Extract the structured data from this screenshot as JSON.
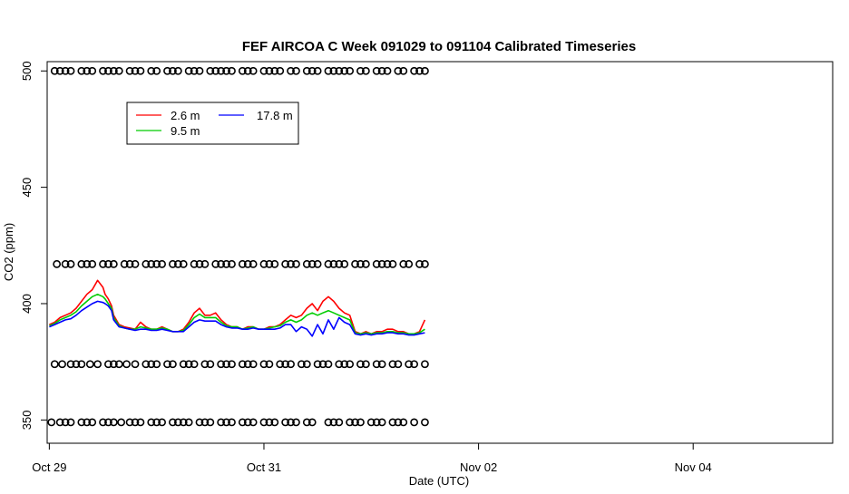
{
  "chart_data": {
    "type": "line",
    "title": "FEF AIRCOA C  Week 091029 to 091104  Calibrated Timeseries",
    "xlabel": "Date (UTC)",
    "ylabel": "CO2 (ppm)",
    "xlim": [
      -0.02,
      7.3
    ],
    "ylim": [
      340,
      504
    ],
    "x_ticks": [
      {
        "value": 0,
        "label": "Oct 29"
      },
      {
        "value": 2,
        "label": "Oct 31"
      },
      {
        "value": 4,
        "label": "Nov 02"
      },
      {
        "value": 6,
        "label": "Nov 04"
      }
    ],
    "y_ticks": [
      {
        "value": 350,
        "label": "350"
      },
      {
        "value": 400,
        "label": "400"
      },
      {
        "value": 450,
        "label": "450"
      },
      {
        "value": 500,
        "label": "500"
      }
    ],
    "grid": false,
    "legend": {
      "placement": "top-left",
      "entries": [
        {
          "label": "2.6 m",
          "color": "#ff0000"
        },
        {
          "label": "9.5 m",
          "color": "#00cc00"
        },
        {
          "label": "17.8 m",
          "color": "#0000ff"
        }
      ]
    },
    "series": [
      {
        "name": "2.6 m",
        "color": "#ff0000",
        "x": [
          0.0,
          0.05,
          0.1,
          0.15,
          0.2,
          0.25,
          0.3,
          0.35,
          0.4,
          0.45,
          0.5,
          0.52,
          0.55,
          0.58,
          0.6,
          0.65,
          0.7,
          0.75,
          0.8,
          0.85,
          0.9,
          0.95,
          1.0,
          1.05,
          1.1,
          1.15,
          1.2,
          1.25,
          1.3,
          1.35,
          1.4,
          1.45,
          1.5,
          1.55,
          1.6,
          1.65,
          1.7,
          1.75,
          1.8,
          1.85,
          1.9,
          1.95,
          2.0,
          2.05,
          2.1,
          2.15,
          2.2,
          2.25,
          2.3,
          2.35,
          2.4,
          2.45,
          2.5,
          2.55,
          2.6,
          2.65,
          2.7,
          2.75,
          2.8,
          2.85,
          2.9,
          2.95,
          3.0,
          3.05,
          3.1,
          3.15,
          3.2,
          3.25,
          3.3,
          3.35,
          3.4,
          3.45,
          3.5
        ],
        "y": [
          391,
          392,
          394,
          395,
          396,
          398,
          401,
          404,
          406,
          410,
          407,
          404,
          402,
          399,
          395,
          391,
          390,
          389.5,
          389,
          392,
          390,
          389,
          389,
          390,
          389,
          388,
          388,
          389,
          392,
          396,
          398,
          395,
          395,
          396,
          393,
          391,
          390,
          390,
          389,
          390,
          390,
          389,
          389,
          390,
          390,
          391,
          393,
          395,
          394,
          395,
          398,
          400,
          397,
          401,
          403,
          401,
          398,
          396,
          395,
          388,
          387,
          388,
          387,
          388,
          388,
          389,
          389,
          388,
          388,
          387,
          387,
          388,
          393
        ]
      },
      {
        "name": "9.5 m",
        "color": "#00cc00",
        "x": [
          0.0,
          0.05,
          0.1,
          0.15,
          0.2,
          0.25,
          0.3,
          0.35,
          0.4,
          0.45,
          0.5,
          0.52,
          0.55,
          0.58,
          0.6,
          0.65,
          0.7,
          0.75,
          0.8,
          0.85,
          0.9,
          0.95,
          1.0,
          1.05,
          1.1,
          1.15,
          1.2,
          1.25,
          1.3,
          1.35,
          1.4,
          1.45,
          1.5,
          1.55,
          1.6,
          1.65,
          1.7,
          1.75,
          1.8,
          1.85,
          1.9,
          1.95,
          2.0,
          2.05,
          2.1,
          2.15,
          2.2,
          2.25,
          2.3,
          2.35,
          2.4,
          2.45,
          2.5,
          2.55,
          2.6,
          2.65,
          2.7,
          2.75,
          2.8,
          2.85,
          2.9,
          2.95,
          3.0,
          3.05,
          3.1,
          3.15,
          3.2,
          3.25,
          3.3,
          3.35,
          3.4,
          3.45,
          3.5
        ],
        "y": [
          390.5,
          391.5,
          393,
          394,
          395,
          396.5,
          399,
          401,
          403,
          404,
          403,
          402,
          400,
          398,
          394,
          390.5,
          389.5,
          389,
          389,
          390,
          389.5,
          389,
          389,
          389.5,
          389,
          388,
          388,
          388.5,
          391,
          394,
          395.5,
          394,
          394,
          394,
          392,
          390.5,
          390,
          390,
          389,
          389.5,
          390,
          389,
          389,
          389.5,
          390,
          390.5,
          392,
          393,
          392,
          393,
          395,
          396,
          395,
          396,
          397,
          396,
          395,
          394,
          393,
          387.5,
          387,
          387.5,
          387,
          387.5,
          387.5,
          388,
          388,
          387.5,
          387.5,
          387,
          387,
          387.5,
          389
        ]
      },
      {
        "name": "17.8 m",
        "color": "#0000ff",
        "x": [
          0.0,
          0.05,
          0.1,
          0.15,
          0.2,
          0.25,
          0.3,
          0.35,
          0.4,
          0.45,
          0.5,
          0.52,
          0.55,
          0.58,
          0.6,
          0.65,
          0.7,
          0.75,
          0.8,
          0.85,
          0.9,
          0.95,
          1.0,
          1.05,
          1.1,
          1.15,
          1.2,
          1.25,
          1.3,
          1.35,
          1.4,
          1.45,
          1.5,
          1.55,
          1.6,
          1.65,
          1.7,
          1.75,
          1.8,
          1.85,
          1.9,
          1.95,
          2.0,
          2.05,
          2.1,
          2.15,
          2.2,
          2.25,
          2.3,
          2.35,
          2.4,
          2.45,
          2.5,
          2.55,
          2.6,
          2.65,
          2.7,
          2.75,
          2.8,
          2.85,
          2.9,
          2.95,
          3.0,
          3.05,
          3.1,
          3.15,
          3.2,
          3.25,
          3.3,
          3.35,
          3.4,
          3.45,
          3.5
        ],
        "y": [
          390,
          391,
          392,
          393,
          393.5,
          395,
          397,
          398.5,
          400,
          401,
          400.5,
          400,
          399,
          397,
          393,
          390,
          389.5,
          389,
          388.5,
          389,
          389,
          388.5,
          388.5,
          389,
          388.5,
          388,
          388,
          388,
          390,
          392,
          393,
          392.5,
          392.5,
          392.5,
          391,
          390,
          389.5,
          389.5,
          389,
          389,
          389.5,
          389,
          389,
          389,
          389,
          389.5,
          391,
          391,
          388,
          390,
          389,
          386,
          391,
          387,
          393,
          389,
          394,
          392,
          391,
          387,
          386.5,
          387,
          386.5,
          387,
          387,
          387.5,
          387.5,
          387,
          387,
          386.5,
          386.5,
          387,
          387.5
        ]
      }
    ],
    "flag_rows": [
      {
        "name": "flags-500",
        "y": 500,
        "x": [
          0.05,
          0.1,
          0.15,
          0.2,
          0.3,
          0.35,
          0.4,
          0.5,
          0.55,
          0.6,
          0.65,
          0.75,
          0.8,
          0.85,
          0.95,
          1.0,
          1.1,
          1.15,
          1.2,
          1.3,
          1.35,
          1.4,
          1.5,
          1.55,
          1.6,
          1.65,
          1.7,
          1.8,
          1.85,
          1.9,
          2.0,
          2.05,
          2.1,
          2.15,
          2.25,
          2.3,
          2.4,
          2.45,
          2.5,
          2.6,
          2.65,
          2.7,
          2.75,
          2.8,
          2.9,
          2.95,
          3.05,
          3.1,
          3.15,
          3.25,
          3.3,
          3.4,
          3.45,
          3.5
        ]
      },
      {
        "name": "flags-417",
        "y": 417,
        "x": [
          0.07,
          0.15,
          0.2,
          0.3,
          0.35,
          0.4,
          0.5,
          0.55,
          0.6,
          0.7,
          0.75,
          0.8,
          0.9,
          0.95,
          1.0,
          1.05,
          1.15,
          1.2,
          1.25,
          1.35,
          1.4,
          1.45,
          1.55,
          1.6,
          1.65,
          1.7,
          1.8,
          1.85,
          1.9,
          2.0,
          2.05,
          2.1,
          2.2,
          2.25,
          2.3,
          2.4,
          2.45,
          2.5,
          2.6,
          2.65,
          2.7,
          2.75,
          2.85,
          2.9,
          2.95,
          3.05,
          3.1,
          3.15,
          3.2,
          3.3,
          3.35,
          3.45,
          3.5
        ]
      },
      {
        "name": "flags-374",
        "y": 374,
        "x": [
          0.05,
          0.12,
          0.2,
          0.25,
          0.3,
          0.38,
          0.45,
          0.55,
          0.6,
          0.65,
          0.72,
          0.8,
          0.9,
          0.95,
          1.0,
          1.1,
          1.15,
          1.25,
          1.3,
          1.35,
          1.45,
          1.5,
          1.6,
          1.65,
          1.7,
          1.8,
          1.85,
          1.9,
          2.0,
          2.05,
          2.15,
          2.2,
          2.25,
          2.35,
          2.4,
          2.5,
          2.55,
          2.6,
          2.7,
          2.75,
          2.8,
          2.9,
          2.95,
          3.05,
          3.1,
          3.2,
          3.25,
          3.35,
          3.4,
          3.5
        ]
      },
      {
        "name": "flags-349",
        "y": 349,
        "x": [
          0.02,
          0.1,
          0.15,
          0.2,
          0.3,
          0.35,
          0.4,
          0.5,
          0.55,
          0.6,
          0.67,
          0.75,
          0.8,
          0.85,
          0.95,
          1.0,
          1.05,
          1.15,
          1.2,
          1.25,
          1.3,
          1.4,
          1.45,
          1.5,
          1.6,
          1.65,
          1.7,
          1.8,
          1.85,
          1.9,
          2.0,
          2.05,
          2.1,
          2.2,
          2.25,
          2.3,
          2.4,
          2.45,
          2.6,
          2.65,
          2.7,
          2.8,
          2.85,
          2.9,
          3.0,
          3.05,
          3.1,
          3.2,
          3.25,
          3.3,
          3.4,
          3.5
        ]
      }
    ]
  }
}
